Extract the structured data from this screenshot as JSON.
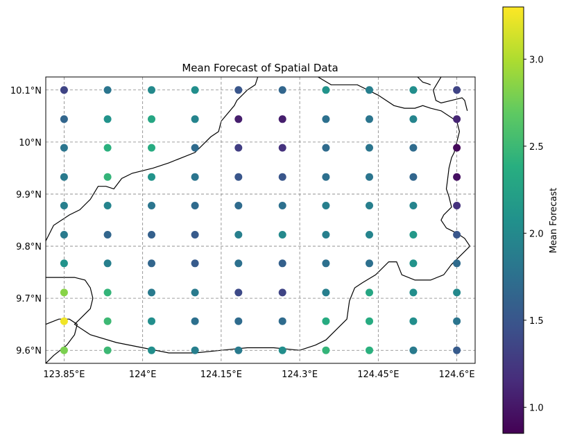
{
  "chart_data": {
    "type": "scatter",
    "title": "Mean Forecast of Spatial Data",
    "xlabel": "",
    "ylabel": "",
    "xlim": [
      123.815,
      124.635
    ],
    "ylim": [
      9.575,
      10.125
    ],
    "grid": true,
    "x_ticks": [
      {
        "value": 123.85,
        "label": "123.85°E"
      },
      {
        "value": 124.0,
        "label": "124°E"
      },
      {
        "value": 124.15,
        "label": "124.15°E"
      },
      {
        "value": 124.3,
        "label": "124.3°E"
      },
      {
        "value": 124.45,
        "label": "124.45°E"
      },
      {
        "value": 124.6,
        "label": "124.6°E"
      }
    ],
    "y_ticks": [
      {
        "value": 9.6,
        "label": "9.6°N"
      },
      {
        "value": 9.7,
        "label": "9.7°N"
      },
      {
        "value": 9.8,
        "label": "9.8°N"
      },
      {
        "value": 9.9,
        "label": "9.9°N"
      },
      {
        "value": 10.0,
        "label": "10°N"
      },
      {
        "value": 10.1,
        "label": "10.1°N"
      }
    ],
    "colorbar": {
      "label": "Mean Forecast",
      "min": 0.85,
      "max": 3.3,
      "ticks": [
        {
          "value": 1.0,
          "label": "1.0"
        },
        {
          "value": 1.5,
          "label": "1.5"
        },
        {
          "value": 2.0,
          "label": "2.0"
        },
        {
          "value": 2.5,
          "label": "2.5"
        },
        {
          "value": 3.0,
          "label": "3.0"
        }
      ],
      "colormap": "viridis"
    },
    "grid_points": {
      "x": [
        123.85,
        123.933,
        124.017,
        124.1,
        124.183,
        124.267,
        124.35,
        124.433,
        124.517,
        124.6
      ],
      "y": [
        10.1,
        10.044,
        9.989,
        9.933,
        9.878,
        9.822,
        9.767,
        9.711,
        9.656,
        9.6
      ],
      "values": [
        [
          1.35,
          1.8,
          2.0,
          2.05,
          1.5,
          1.65,
          2.1,
          1.9,
          2.05,
          1.35
        ],
        [
          1.65,
          2.1,
          2.3,
          1.95,
          1.05,
          1.05,
          1.75,
          1.8,
          1.95,
          1.1
        ],
        [
          1.8,
          2.4,
          2.35,
          1.7,
          1.3,
          1.2,
          1.7,
          1.8,
          1.7,
          0.9
        ],
        [
          1.85,
          2.45,
          2.1,
          1.8,
          1.5,
          1.5,
          1.75,
          1.8,
          1.65,
          0.95
        ],
        [
          1.9,
          1.95,
          1.8,
          1.7,
          1.7,
          1.75,
          1.9,
          1.9,
          1.95,
          1.2
        ],
        [
          1.85,
          1.65,
          1.6,
          1.55,
          1.9,
          2.0,
          1.9,
          1.95,
          2.15,
          1.5
        ],
        [
          2.1,
          1.9,
          1.65,
          1.55,
          1.75,
          1.6,
          1.75,
          1.75,
          2.1,
          1.7
        ],
        [
          2.85,
          2.45,
          1.85,
          1.85,
          1.4,
          1.35,
          1.9,
          2.3,
          2.05,
          2.0
        ],
        [
          3.25,
          2.5,
          2.05,
          1.75,
          1.7,
          1.7,
          2.35,
          2.35,
          2.05,
          1.8
        ],
        [
          2.8,
          2.5,
          2.05,
          1.9,
          1.85,
          2.05,
          2.45,
          2.4,
          1.85,
          1.55
        ]
      ]
    },
    "coastlines": [
      [
        [
          123.815,
          9.81
        ],
        [
          123.83,
          9.84
        ],
        [
          123.86,
          9.86
        ],
        [
          123.88,
          9.87
        ],
        [
          123.9,
          9.89
        ],
        [
          123.915,
          9.915
        ],
        [
          123.93,
          9.915
        ],
        [
          123.945,
          9.91
        ],
        [
          123.96,
          9.93
        ],
        [
          123.98,
          9.94
        ],
        [
          124.02,
          9.95
        ],
        [
          124.05,
          9.96
        ],
        [
          124.1,
          9.98
        ],
        [
          124.13,
          10.01
        ],
        [
          124.145,
          10.02
        ],
        [
          124.15,
          10.04
        ],
        [
          124.175,
          10.07
        ],
        [
          124.18,
          10.08
        ],
        [
          124.2,
          10.1
        ],
        [
          124.215,
          10.11
        ],
        [
          124.22,
          10.125
        ]
      ],
      [
        [
          124.335,
          10.125
        ],
        [
          124.36,
          10.11
        ],
        [
          124.41,
          10.11
        ],
        [
          124.45,
          10.09
        ],
        [
          124.48,
          10.07
        ],
        [
          124.5,
          10.065
        ],
        [
          124.52,
          10.065
        ],
        [
          124.535,
          10.07
        ],
        [
          124.55,
          10.065
        ],
        [
          124.57,
          10.06
        ],
        [
          124.6,
          10.04
        ],
        [
          124.605,
          10.02
        ],
        [
          124.6,
          10.0
        ],
        [
          124.595,
          9.98
        ],
        [
          124.59,
          9.97
        ],
        [
          124.585,
          9.95
        ],
        [
          124.582,
          9.925
        ],
        [
          124.58,
          9.91
        ],
        [
          124.585,
          9.895
        ],
        [
          124.59,
          9.875
        ],
        [
          124.575,
          9.86
        ],
        [
          124.57,
          9.85
        ],
        [
          124.58,
          9.835
        ],
        [
          124.6,
          9.825
        ],
        [
          124.615,
          9.815
        ],
        [
          124.625,
          9.8
        ],
        [
          124.605,
          9.78
        ],
        [
          124.59,
          9.765
        ],
        [
          124.575,
          9.745
        ],
        [
          124.55,
          9.735
        ],
        [
          124.52,
          9.735
        ],
        [
          124.495,
          9.745
        ],
        [
          124.485,
          9.77
        ],
        [
          124.47,
          9.77
        ],
        [
          124.445,
          9.745
        ],
        [
          124.42,
          9.73
        ],
        [
          124.405,
          9.72
        ],
        [
          124.395,
          9.695
        ],
        [
          124.39,
          9.66
        ],
        [
          124.37,
          9.64
        ],
        [
          124.35,
          9.62
        ],
        [
          124.33,
          9.61
        ],
        [
          124.3,
          9.6
        ],
        [
          124.25,
          9.605
        ],
        [
          124.2,
          9.605
        ],
        [
          124.15,
          9.6
        ],
        [
          124.1,
          9.595
        ],
        [
          124.05,
          9.595
        ],
        [
          124.0,
          9.605
        ],
        [
          123.95,
          9.615
        ],
        [
          123.9,
          9.63
        ],
        [
          123.87,
          9.65
        ],
        [
          123.88,
          9.66
        ],
        [
          123.9,
          9.68
        ],
        [
          123.905,
          9.7
        ],
        [
          123.9,
          9.72
        ],
        [
          123.89,
          9.735
        ],
        [
          123.87,
          9.74
        ],
        [
          123.85,
          9.74
        ],
        [
          123.83,
          9.74
        ],
        [
          123.815,
          9.74
        ]
      ],
      [
        [
          124.57,
          10.125
        ],
        [
          124.555,
          10.1
        ],
        [
          124.56,
          10.08
        ],
        [
          124.57,
          10.075
        ],
        [
          124.59,
          10.08
        ],
        [
          124.61,
          10.085
        ],
        [
          124.615,
          10.08
        ],
        [
          124.62,
          10.06
        ]
      ],
      [
        [
          124.525,
          10.125
        ],
        [
          124.535,
          10.115
        ],
        [
          124.545,
          10.112
        ],
        [
          124.55,
          10.11
        ]
      ],
      [
        [
          123.815,
          9.575
        ],
        [
          123.83,
          9.59
        ],
        [
          123.855,
          9.61
        ],
        [
          123.87,
          9.63
        ],
        [
          123.875,
          9.65
        ],
        [
          123.86,
          9.66
        ],
        [
          123.84,
          9.66
        ],
        [
          123.815,
          9.65
        ]
      ]
    ]
  }
}
